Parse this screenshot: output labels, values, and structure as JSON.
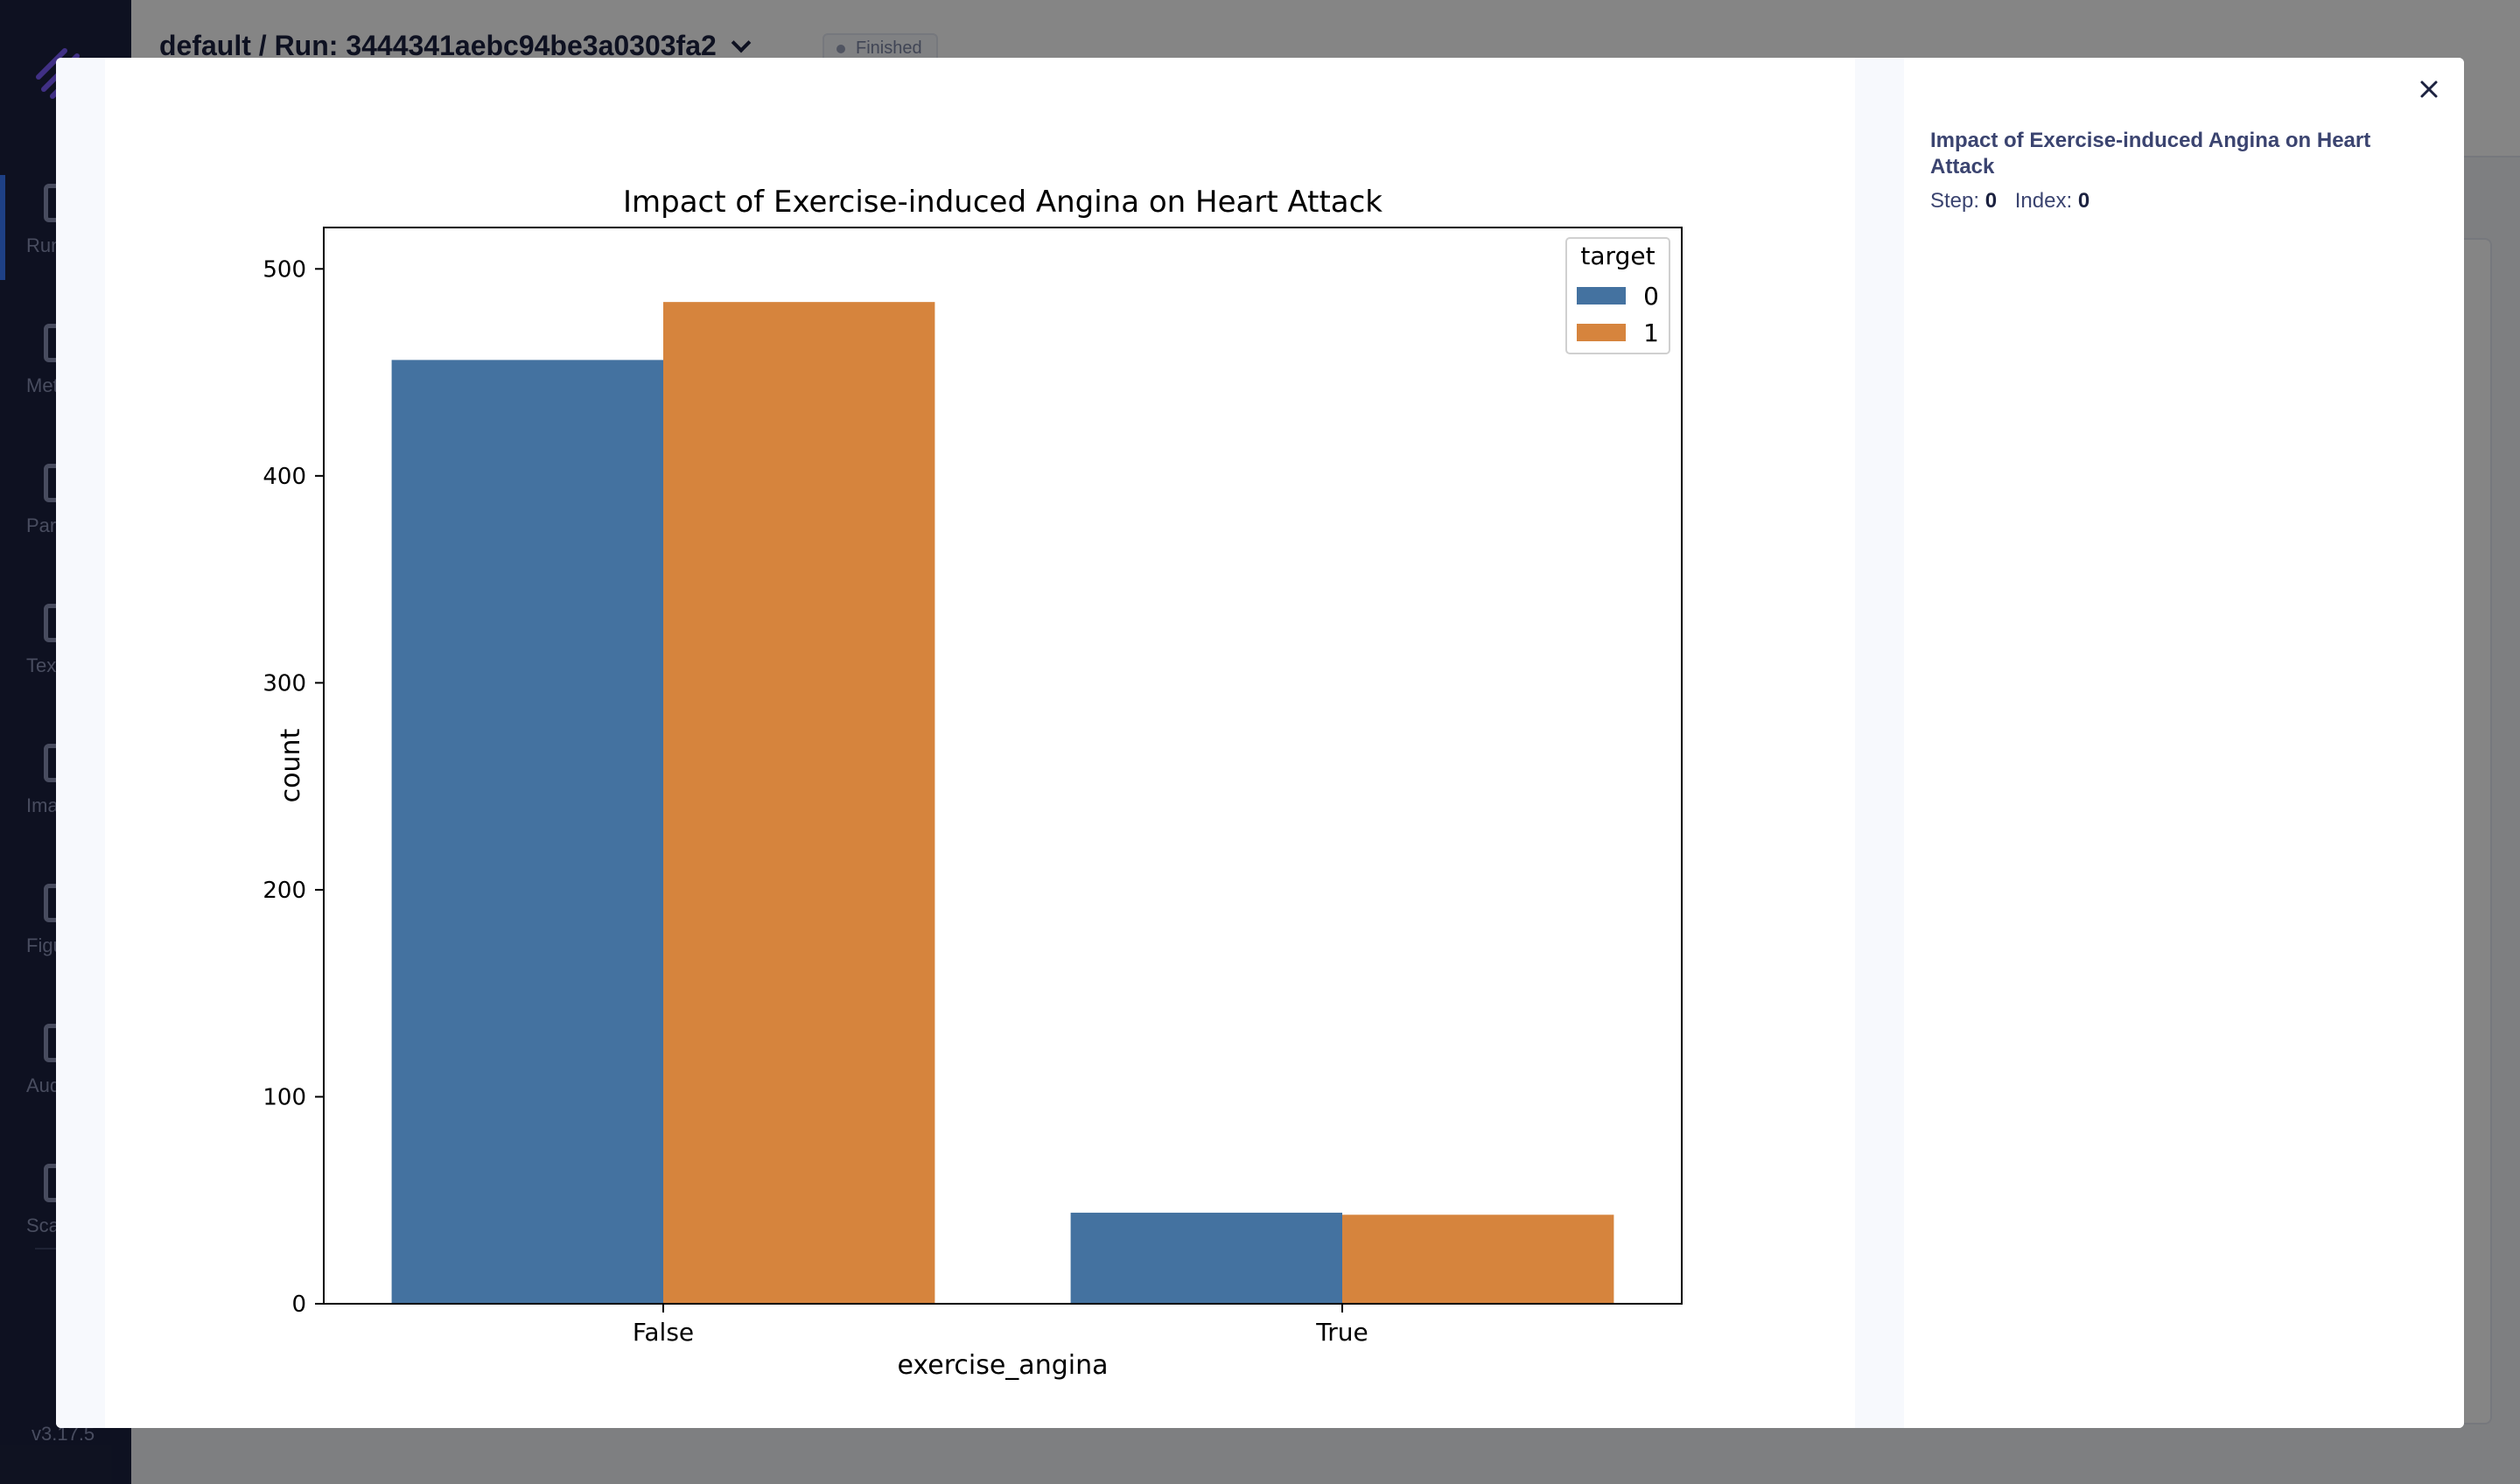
{
  "app": {
    "breadcrumb": "default / Run: 3444341aebc94be3a0303fa2",
    "status": "Finished",
    "version": "v3.17.5",
    "nav": [
      {
        "label": "Runs",
        "icon": "runs-icon"
      },
      {
        "label": "Metrics",
        "icon": "metrics-icon"
      },
      {
        "label": "Params",
        "icon": "params-icon"
      },
      {
        "label": "Texts",
        "icon": "texts-icon"
      },
      {
        "label": "Images",
        "icon": "images-icon"
      },
      {
        "label": "Figures",
        "icon": "figures-icon"
      },
      {
        "label": "Audios",
        "icon": "audios-icon"
      },
      {
        "label": "Scatters",
        "icon": "scatters-icon"
      }
    ]
  },
  "details": {
    "title": "Impact of Exercise-induced Angina on Heart Attack",
    "step_label": "Step:",
    "step_value": "0",
    "index_label": "Index:",
    "index_value": "0"
  },
  "chart_data": {
    "type": "bar",
    "title": "Impact of Exercise-induced Angina on Heart Attack",
    "xlabel": "exercise_angina",
    "ylabel": "count",
    "categories": [
      "False",
      "True"
    ],
    "series": [
      {
        "name": "0",
        "color": "#4472a0",
        "values": [
          456,
          44
        ]
      },
      {
        "name": "1",
        "color": "#d6843d",
        "values": [
          484,
          43
        ]
      }
    ],
    "ylim": [
      0,
      520
    ],
    "yticks": [
      0,
      100,
      200,
      300,
      400,
      500
    ],
    "legend_title": "target",
    "legend_position": "top-right",
    "grid": false
  }
}
